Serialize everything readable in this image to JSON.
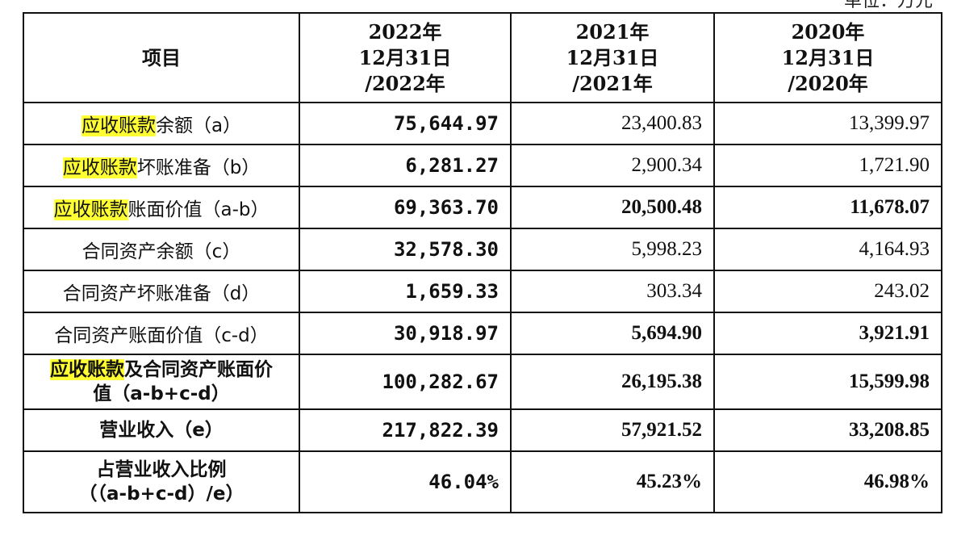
{
  "unit_note": "单位：万元",
  "header": {
    "item": "项目",
    "col2022": [
      "2022年",
      "12月31日",
      "/2022年"
    ],
    "col2021": [
      "2021年",
      "12月31日",
      "/2021年"
    ],
    "col2020": [
      "2020年",
      "12月31日",
      "/2020年"
    ]
  },
  "rows": [
    {
      "hl": "应收账款",
      "rest": "余额（a）",
      "v2022": "75,644.97",
      "v2021": "23,400.83",
      "v2020": "13,399.97"
    },
    {
      "hl": "应收账款",
      "rest": "坏账准备（b）",
      "v2022": "6,281.27",
      "v2021": "2,900.34",
      "v2020": "1,721.90"
    },
    {
      "hl": "应收账款",
      "rest": "账面价值（a-b）",
      "v2022": "69,363.70",
      "v2021": "20,500.48",
      "v2020": "11,678.07"
    },
    {
      "hl": "",
      "rest": "合同资产余额（c）",
      "v2022": "32,578.30",
      "v2021": "5,998.23",
      "v2020": "4,164.93"
    },
    {
      "hl": "",
      "rest": "合同资产坏账准备（d）",
      "v2022": "1,659.33",
      "v2021": "303.34",
      "v2020": "243.02"
    },
    {
      "hl": "",
      "rest": "合同资产账面价值（c-d）",
      "v2022": "30,918.97",
      "v2021": "5,694.90",
      "v2020": "3,921.91"
    },
    {
      "hl": "应收账款",
      "rest": "及合同资产账面价",
      "rest2": "值（a-b+c-d）",
      "v2022": "100,282.67",
      "v2021": "26,195.38",
      "v2020": "15,599.98"
    },
    {
      "hl": "",
      "rest": "营业收入（e）",
      "v2022": "217,822.39",
      "v2021": "57,921.52",
      "v2020": "33,208.85"
    },
    {
      "hl": "",
      "rest": "占营业收入比例",
      "rest2": "（（a-b+c-d）/e）",
      "v2022": "46.04%",
      "v2021": "45.23%",
      "v2020": "46.98%"
    }
  ]
}
